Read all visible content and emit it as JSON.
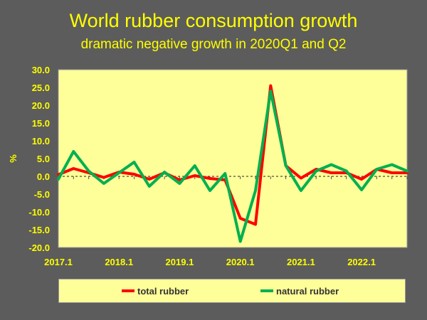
{
  "chart_data": {
    "type": "line",
    "title": "World rubber consumption growth",
    "subtitle": "dramatic negative growth in 2020Q1 and Q2",
    "ylabel": "%",
    "xlabel": "",
    "ylim": [
      -20,
      30
    ],
    "ytick_labels": [
      "30.0",
      "25.0",
      "20.0",
      "15.0",
      "10.0",
      "5.0",
      "0.0",
      "-5.0",
      "-10.0",
      "-15.0",
      "-20.0"
    ],
    "xtick_labels": [
      "2017.1",
      "2018.1",
      "2019.1",
      "2020.1",
      "2021.1",
      "2022.1"
    ],
    "x": [
      "2017.1",
      "2017.2",
      "2017.3",
      "2017.4",
      "2018.1",
      "2018.2",
      "2018.3",
      "2018.4",
      "2019.1",
      "2019.2",
      "2019.3",
      "2019.4",
      "2020.1",
      "2020.2",
      "2020.3",
      "2020.4",
      "2021.1",
      "2021.2",
      "2021.3",
      "2021.4",
      "2022.1",
      "2022.2",
      "2022.3",
      "2022.4"
    ],
    "series": [
      {
        "name": "total rubber",
        "color": "#ff0000",
        "values": [
          0.5,
          2.2,
          1.0,
          -0.3,
          1.2,
          0.6,
          -0.8,
          1.0,
          -1.0,
          0.2,
          -0.6,
          -1.0,
          -11.8,
          -13.5,
          25.5,
          3.0,
          -0.5,
          2.0,
          1.0,
          1.0,
          -0.8,
          2.0,
          1.0,
          1.0
        ]
      },
      {
        "name": "natural rubber",
        "color": "#00b050",
        "values": [
          -0.8,
          7.0,
          1.5,
          -2.0,
          1.0,
          4.0,
          -2.8,
          1.2,
          -2.0,
          3.0,
          -4.0,
          0.8,
          -18.3,
          -4.0,
          24.0,
          3.0,
          -4.0,
          1.5,
          3.3,
          1.5,
          -3.8,
          2.0,
          3.3,
          1.5
        ]
      }
    ],
    "grid": false,
    "legend_position": "bottom"
  }
}
